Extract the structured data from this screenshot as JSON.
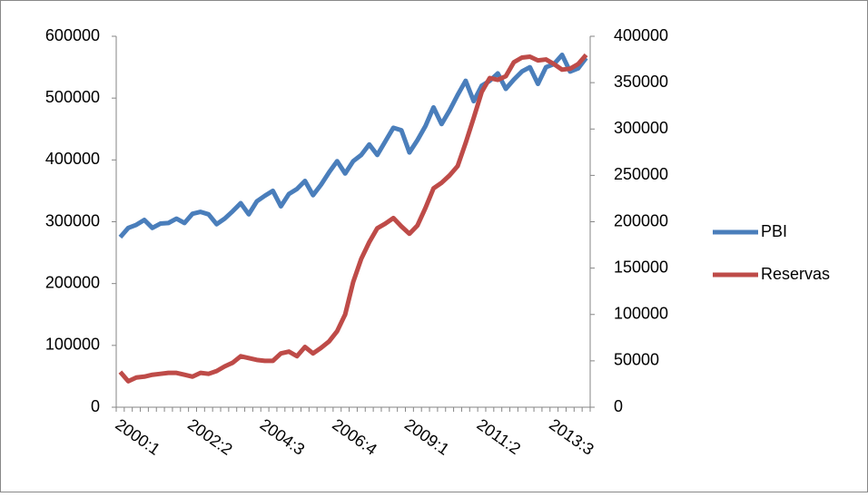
{
  "chart_data": {
    "type": "line",
    "categories": [
      "2000:1",
      null,
      null,
      null,
      null,
      null,
      null,
      null,
      null,
      "2002:2",
      null,
      null,
      null,
      null,
      null,
      null,
      null,
      null,
      "2004:3",
      null,
      null,
      null,
      null,
      null,
      null,
      null,
      null,
      "2006:4",
      null,
      null,
      null,
      null,
      null,
      null,
      null,
      null,
      "2009:1",
      null,
      null,
      null,
      null,
      null,
      null,
      null,
      null,
      "2011:2",
      null,
      null,
      null,
      null,
      null,
      null,
      null,
      null,
      "2013:3",
      null,
      null,
      null,
      null
    ],
    "series": [
      {
        "name": "PBI",
        "color": "#4a7ebb",
        "axis": "y",
        "values": [
          275000,
          290000,
          295000,
          303000,
          290000,
          297000,
          298000,
          305000,
          298000,
          313000,
          316000,
          312000,
          296000,
          305000,
          317000,
          330000,
          312000,
          333000,
          342000,
          350000,
          325000,
          345000,
          353000,
          366000,
          343000,
          360000,
          380000,
          398000,
          378000,
          398000,
          408000,
          425000,
          408000,
          430000,
          452000,
          448000,
          412000,
          432000,
          455000,
          485000,
          458000,
          480000,
          505000,
          528000,
          495000,
          520000,
          528000,
          540000,
          515000,
          530000,
          543000,
          550000,
          523000,
          550000,
          555000,
          570000,
          543000,
          548000,
          565000
        ]
      },
      {
        "name": "Reservas",
        "color": "#be4b48",
        "axis": "y2",
        "values": [
          38000,
          28000,
          32000,
          33000,
          35000,
          36000,
          37000,
          37000,
          35000,
          33000,
          37000,
          36000,
          39000,
          44000,
          48000,
          55000,
          53000,
          51000,
          50000,
          50000,
          58000,
          60000,
          55000,
          65000,
          58000,
          64000,
          71000,
          82000,
          100000,
          135000,
          160000,
          178000,
          193000,
          198000,
          204000,
          195000,
          187000,
          196000,
          215000,
          236000,
          242000,
          250000,
          260000,
          285000,
          312000,
          340000,
          355000,
          353000,
          357000,
          372000,
          377000,
          378000,
          374000,
          375000,
          370000,
          364000,
          365000,
          370000,
          380000
        ]
      }
    ],
    "ylim": [
      0,
      600000
    ],
    "yticks": [
      0,
      100000,
      200000,
      300000,
      400000,
      500000,
      600000
    ],
    "y2lim": [
      0,
      400000
    ],
    "y2ticks": [
      0,
      50000,
      100000,
      150000,
      200000,
      250000,
      300000,
      350000,
      400000
    ],
    "legend": "right"
  }
}
